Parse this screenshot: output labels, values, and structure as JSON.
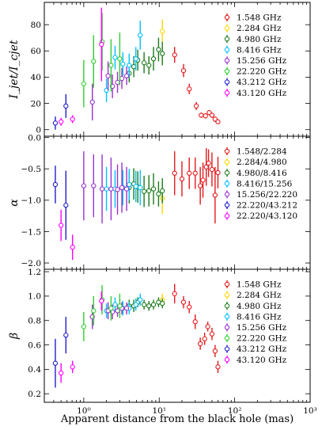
{
  "chart_data": [
    {
      "type": "scatter",
      "xscale": "log",
      "xlim": [
        0.3,
        1000
      ],
      "ylim": [
        -5,
        97
      ],
      "ylabel": "I_jet/I_cjet",
      "yticks": [
        "0",
        "20",
        "40",
        "60",
        "80"
      ],
      "ytick_values": [
        0,
        20,
        40,
        60,
        80
      ],
      "legend": "top-right",
      "series": [
        {
          "name": "1.548 GHz",
          "color": "#e41a1c",
          "points": [
            [
              16,
              57,
              6
            ],
            [
              21,
              45,
              5
            ],
            [
              25,
              31,
              4
            ],
            [
              31,
              18,
              3
            ],
            [
              36,
              11,
              2
            ],
            [
              41,
              10.5,
              2
            ],
            [
              46,
              13,
              2
            ],
            [
              50,
              11,
              2
            ],
            [
              55,
              8,
              2
            ],
            [
              60,
              6,
              1.5
            ]
          ]
        },
        {
          "name": "2.284 GHz",
          "color": "#ffd700",
          "points": [
            [
              11,
              75,
              9
            ]
          ]
        },
        {
          "name": "4.980 GHz",
          "color": "#1b7a1b",
          "points": [
            [
              4.0,
              43,
              7
            ],
            [
              4.6,
              48,
              8
            ],
            [
              5.2,
              53,
              8
            ],
            [
              6.3,
              51,
              8
            ],
            [
              7.3,
              49,
              7
            ],
            [
              8.4,
              54,
              9
            ],
            [
              9.8,
              61,
              9
            ],
            [
              11.0,
              58,
              9
            ]
          ]
        },
        {
          "name": "8.416 GHz",
          "color": "#00bfff",
          "points": [
            [
              2.0,
              30,
              9
            ],
            [
              2.6,
              55,
              9
            ],
            [
              3.3,
              50,
              9
            ],
            [
              4.0,
              49,
              9
            ],
            [
              4.9,
              54,
              9
            ],
            [
              5.6,
              72,
              11
            ]
          ]
        },
        {
          "name": "15.256 GHz",
          "color": "#9932cc",
          "points": [
            [
              1.3,
              21,
              14
            ],
            [
              2.1,
              41,
              11
            ],
            [
              2.4,
              33,
              9
            ],
            [
              2.8,
              36,
              8
            ],
            [
              3.2,
              39,
              8
            ],
            [
              3.7,
              41,
              7
            ]
          ]
        },
        {
          "name": "22.220 GHz",
          "color": "#32cd32",
          "points": [
            [
              1.0,
              35,
              18
            ],
            [
              1.35,
              52,
              20
            ],
            [
              1.75,
              67,
              22
            ],
            [
              2.3,
              49,
              20
            ],
            [
              3.0,
              54,
              20
            ]
          ]
        },
        {
          "name": "43.212 GHz",
          "color": "#1f1fcc",
          "points": [
            [
              0.42,
              5,
              5
            ],
            [
              0.58,
              18,
              9
            ]
          ]
        },
        {
          "name": "43.120 GHz",
          "color": "#ff00ff",
          "points": [
            [
              0.5,
              6,
              3
            ],
            [
              0.71,
              8,
              3
            ],
            [
              1.72,
              65,
              28
            ]
          ]
        }
      ]
    },
    {
      "type": "scatter",
      "xscale": "log",
      "xlim": [
        0.3,
        1000
      ],
      "ylim": [
        -2.1,
        0.02
      ],
      "ylabel": "α",
      "yticks": [
        "0.0",
        "−0.5",
        "−1.0",
        "−1.5",
        "−2.0"
      ],
      "ytick_values": [
        0,
        -0.5,
        -1.0,
        -1.5,
        -2.0
      ],
      "legend": "top-right",
      "series": [
        {
          "name": "1.548/2.284",
          "color": "#e41a1c",
          "points": [
            [
              16,
              -0.57,
              0.35
            ],
            [
              20,
              -0.66,
              0.28
            ],
            [
              25,
              -0.57,
              0.25
            ],
            [
              30,
              -0.57,
              0.25
            ],
            [
              35,
              -0.77,
              0.3
            ],
            [
              38,
              -0.68,
              0.28
            ],
            [
              42,
              -0.47,
              0.3
            ],
            [
              45,
              -0.41,
              0.22
            ],
            [
              50,
              -0.51,
              0.27
            ],
            [
              55,
              -0.92,
              0.45
            ],
            [
              60,
              -0.56,
              0.25
            ]
          ]
        },
        {
          "name": "2.284/4.980",
          "color": "#ffd700",
          "points": [
            [
              11,
              -0.97,
              0.25
            ]
          ]
        },
        {
          "name": "4.980/8.416",
          "color": "#1b7a1b",
          "points": [
            [
              4.0,
              -0.8,
              0.25
            ],
            [
              4.6,
              -0.74,
              0.25
            ],
            [
              5.2,
              -0.79,
              0.25
            ],
            [
              6.3,
              -0.86,
              0.25
            ],
            [
              7.3,
              -0.85,
              0.25
            ],
            [
              8.4,
              -0.82,
              0.25
            ],
            [
              9.8,
              -0.9,
              0.2
            ],
            [
              11.0,
              -0.85,
              0.2
            ]
          ]
        },
        {
          "name": "8.416/15.256",
          "color": "#00bfff",
          "points": [
            [
              2.0,
              -0.82,
              0.35
            ],
            [
              2.6,
              -0.82,
              0.3
            ],
            [
              3.3,
              -0.8,
              0.28
            ],
            [
              4.0,
              -0.75,
              0.25
            ],
            [
              4.9,
              -0.78,
              0.25
            ],
            [
              5.6,
              -0.8,
              0.28
            ]
          ]
        },
        {
          "name": "15.256/22.220",
          "color": "#9932cc",
          "points": [
            [
              1.0,
              -0.77,
              0.55
            ],
            [
              1.35,
              -0.77,
              0.5
            ],
            [
              1.75,
              -0.82,
              0.55
            ],
            [
              2.3,
              -0.82,
              0.5
            ],
            [
              2.8,
              -0.83,
              0.4
            ],
            [
              3.2,
              -0.8,
              0.4
            ],
            [
              3.7,
              -0.82,
              0.35
            ]
          ]
        },
        {
          "name": "22.220/43.212",
          "color": "#1f1fcc",
          "points": [
            [
              0.42,
              -0.75,
              0.3
            ],
            [
              0.58,
              -1.08,
              0.55
            ]
          ]
        },
        {
          "name": "22.220/43.120",
          "color": "#ff00ff",
          "points": [
            [
              0.5,
              -1.4,
              0.25
            ],
            [
              0.71,
              -1.75,
              0.2
            ]
          ]
        }
      ]
    },
    {
      "type": "scatter",
      "xscale": "log",
      "xlim": [
        0.3,
        1000
      ],
      "ylim": [
        0.13,
        1.22
      ],
      "ylabel": "β",
      "xlabel": "Apparent distance from the black hole (mas)",
      "yticks": [
        "0.2",
        "0.4",
        "0.6",
        "0.8",
        "1.0",
        "1.2"
      ],
      "ytick_values": [
        0.2,
        0.4,
        0.6,
        0.8,
        1.0,
        1.2
      ],
      "xticks": [
        "10⁰",
        "10¹",
        "10²",
        "10³"
      ],
      "xtick_values": [
        1,
        10,
        100,
        1000
      ],
      "legend": "top-right",
      "series": [
        {
          "name": "1.548 GHz",
          "color": "#e41a1c",
          "points": [
            [
              16,
              1.02,
              0.08
            ],
            [
              21,
              0.95,
              0.05
            ],
            [
              25,
              0.91,
              0.05
            ],
            [
              30,
              0.79,
              0.06
            ],
            [
              35,
              0.61,
              0.05
            ],
            [
              40,
              0.65,
              0.05
            ],
            [
              44,
              0.75,
              0.04
            ],
            [
              50,
              0.69,
              0.05
            ],
            [
              55,
              0.55,
              0.05
            ],
            [
              60,
              0.42,
              0.05
            ]
          ]
        },
        {
          "name": "2.284 GHz",
          "color": "#ffd700",
          "points": [
            [
              11,
              0.97,
              0.05
            ]
          ]
        },
        {
          "name": "4.980 GHz",
          "color": "#1b7a1b",
          "points": [
            [
              4.0,
              0.92,
              0.05
            ],
            [
              4.6,
              0.92,
              0.05
            ],
            [
              5.2,
              0.95,
              0.04
            ],
            [
              6.3,
              0.93,
              0.04
            ],
            [
              7.3,
              0.92,
              0.04
            ],
            [
              8.4,
              0.93,
              0.04
            ],
            [
              9.8,
              0.95,
              0.04
            ],
            [
              11.0,
              0.94,
              0.04
            ]
          ]
        },
        {
          "name": "8.416 GHz",
          "color": "#00bfff",
          "points": [
            [
              2.0,
              0.88,
              0.06
            ],
            [
              2.6,
              0.93,
              0.06
            ],
            [
              3.3,
              0.9,
              0.06
            ],
            [
              4.0,
              0.9,
              0.05
            ],
            [
              4.9,
              0.93,
              0.05
            ],
            [
              5.6,
              0.97,
              0.05
            ]
          ]
        },
        {
          "name": "15.256 GHz",
          "color": "#9932cc",
          "points": [
            [
              1.3,
              0.83,
              0.1
            ],
            [
              2.1,
              0.88,
              0.07
            ],
            [
              2.4,
              0.87,
              0.06
            ],
            [
              2.8,
              0.88,
              0.05
            ],
            [
              3.2,
              0.9,
              0.05
            ],
            [
              3.7,
              0.9,
              0.05
            ]
          ]
        },
        {
          "name": "22.220 GHz",
          "color": "#32cd32",
          "points": [
            [
              1.0,
              0.75,
              0.12
            ],
            [
              1.35,
              0.88,
              0.12
            ],
            [
              1.75,
              0.97,
              0.12
            ],
            [
              2.3,
              0.9,
              0.1
            ],
            [
              3.0,
              0.92,
              0.1
            ]
          ]
        },
        {
          "name": "43.212 GHz",
          "color": "#1f1fcc",
          "points": [
            [
              0.42,
              0.45,
              0.2
            ],
            [
              0.58,
              0.68,
              0.15
            ]
          ]
        },
        {
          "name": "43.120 GHz",
          "color": "#ff00ff",
          "points": [
            [
              0.5,
              0.37,
              0.08
            ],
            [
              0.71,
              0.42,
              0.05
            ],
            [
              1.72,
              0.96,
              0.08
            ]
          ]
        }
      ]
    }
  ]
}
